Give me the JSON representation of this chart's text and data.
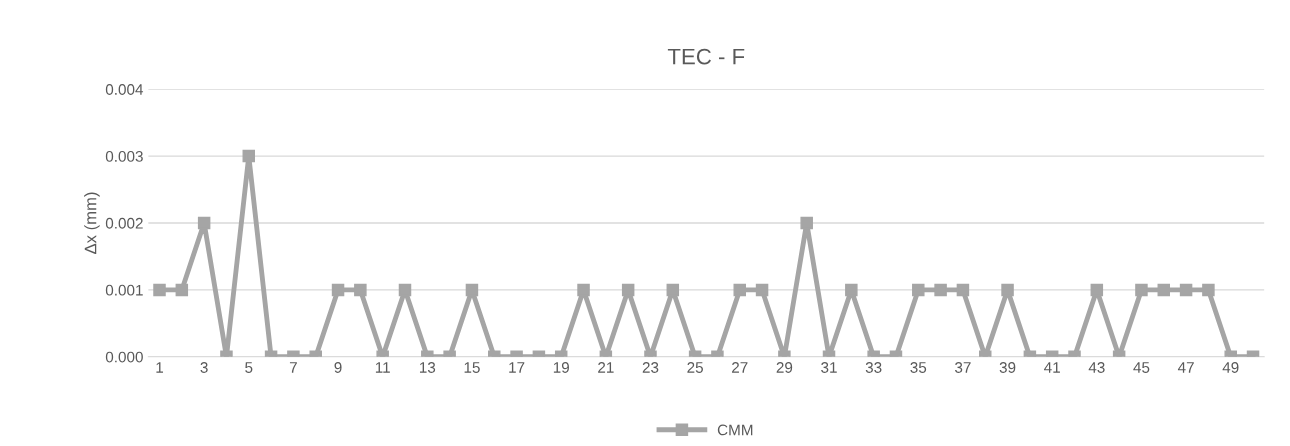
{
  "chart_data": {
    "type": "line",
    "title": "TEC - F",
    "ylabel": "Δx (mm)",
    "categories": [
      "1",
      null,
      "3",
      null,
      "5",
      null,
      "7",
      null,
      "9",
      null,
      "11",
      null,
      "13",
      null,
      "15",
      null,
      "17",
      null,
      "19",
      null,
      "21",
      null,
      "23",
      null,
      "25",
      null,
      "27",
      null,
      "29",
      null,
      "31",
      null,
      "33",
      null,
      "35",
      null,
      "37",
      null,
      "39",
      null,
      "41",
      null,
      "43",
      null,
      "45",
      null,
      "47",
      null,
      "49",
      null
    ],
    "series": [
      {
        "name": "CMM",
        "color": "#a5a5a5",
        "values": [
          0.001,
          0.001,
          0.002,
          0,
          0.003,
          0,
          0,
          0,
          0.001,
          0.001,
          0,
          0.001,
          0,
          0,
          0.001,
          0,
          0,
          0,
          0,
          0.001,
          0,
          0.001,
          0,
          0.001,
          0,
          0,
          0.001,
          0.001,
          0,
          0.002,
          0,
          0.001,
          0,
          0,
          0.001,
          0.001,
          0.001,
          0,
          0.001,
          0,
          0,
          0,
          0.001,
          0,
          0.001,
          0.001,
          0.001,
          0.001,
          0,
          0
        ]
      }
    ],
    "ylim": [
      0,
      0.004
    ],
    "yticks": [
      {
        "value": 0,
        "label": "0.000"
      },
      {
        "value": 0.001,
        "label": "0.001"
      },
      {
        "value": 0.002,
        "label": "0.002"
      },
      {
        "value": 0.003,
        "label": "0.003"
      },
      {
        "value": 0.004,
        "label": "0.004"
      }
    ],
    "grid": "y",
    "legend": "bottom",
    "marker": "square",
    "line_style": "solid"
  }
}
